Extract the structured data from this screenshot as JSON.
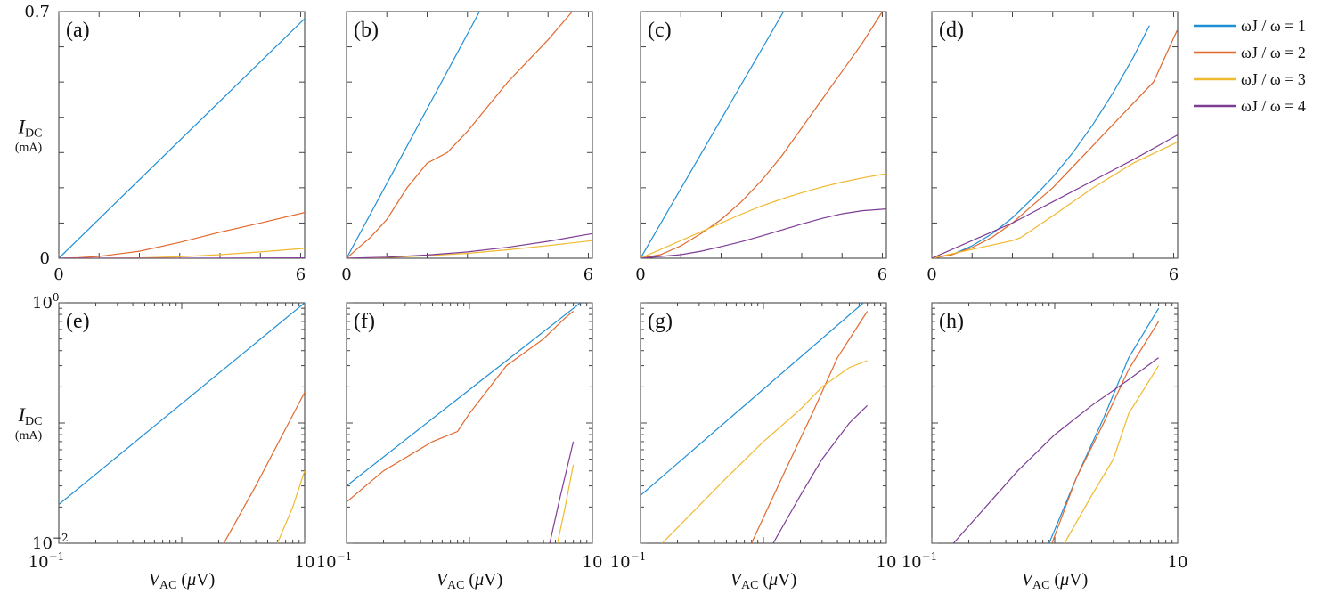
{
  "colors": {
    "c1": "#1f8fd6",
    "c2": "#e1692e",
    "c3": "#f0b92e",
    "c4": "#7d3d94"
  },
  "legend": [
    {
      "key": "c1",
      "label": "ωJ / ω = 1"
    },
    {
      "key": "c2",
      "label": "ωJ / ω = 2"
    },
    {
      "key": "c3",
      "label": "ωJ / ω = 3"
    },
    {
      "key": "c4",
      "label": "ωJ / ω = 4"
    }
  ],
  "axis_text": {
    "ylabel_main": "I",
    "ylabel_sub": "DC",
    "yunit": "(mA)",
    "xlabel_main": "V",
    "xlabel_sub": "AC",
    "xunit_open": " (",
    "xunit_mu": "μ",
    "xunit_close": "V)",
    "lin_x_ticks": [
      "0",
      "6"
    ],
    "lin_y_ticks": [
      "0.7",
      "0"
    ],
    "log_x_ticks": [
      "10",
      "−1",
      "10",
      ""
    ],
    "log_y_ticks": [
      "10",
      "0",
      "10",
      "−2"
    ]
  },
  "chart_data": [
    {
      "type": "line",
      "panel": "(a)",
      "xscale": "linear",
      "yscale": "linear",
      "xlim": [
        0,
        6.1
      ],
      "ylim": [
        0,
        0.7
      ],
      "xlabel": "",
      "ylabel": "IDC (mA)",
      "series": [
        {
          "name": "ωJ / ω = 1",
          "key": "c1",
          "x": [
            0,
            6.1
          ],
          "y": [
            0,
            0.68
          ]
        },
        {
          "name": "ωJ / ω = 2",
          "key": "c2",
          "x": [
            0,
            0.5,
            1,
            2,
            3,
            4,
            5,
            6.1
          ],
          "y": [
            0,
            0.0015,
            0.005,
            0.02,
            0.045,
            0.074,
            0.1,
            0.13
          ]
        },
        {
          "name": "ωJ / ω = 3",
          "key": "c3",
          "x": [
            0,
            1,
            2,
            3,
            4,
            5,
            6.1
          ],
          "y": [
            0,
            0,
            0.001,
            0.004,
            0.01,
            0.018,
            0.028
          ]
        },
        {
          "name": "ωJ / ω = 4",
          "key": "c4",
          "x": [
            0,
            3,
            6.1
          ],
          "y": [
            0,
            0,
            0.001
          ]
        }
      ]
    },
    {
      "type": "line",
      "panel": "(b)",
      "xscale": "linear",
      "yscale": "linear",
      "xlim": [
        0,
        6.1
      ],
      "ylim": [
        0,
        0.7
      ],
      "xlabel": "",
      "ylabel": "",
      "series": [
        {
          "name": "ωJ / ω = 1",
          "key": "c1",
          "x": [
            0,
            3.3
          ],
          "y": [
            0,
            0.7
          ]
        },
        {
          "name": "ωJ / ω = 2",
          "key": "c2",
          "x": [
            0,
            0.3,
            0.6,
            1,
            1.5,
            2,
            2.5,
            3,
            3.5,
            4,
            4.5,
            5,
            5.6
          ],
          "y": [
            0,
            0.03,
            0.06,
            0.11,
            0.2,
            0.27,
            0.3,
            0.36,
            0.43,
            0.5,
            0.56,
            0.62,
            0.7
          ]
        },
        {
          "name": "ωJ / ω = 3",
          "key": "c3",
          "x": [
            0,
            1,
            2,
            3,
            4,
            5,
            6.1
          ],
          "y": [
            0,
            0.002,
            0.007,
            0.014,
            0.024,
            0.036,
            0.05
          ]
        },
        {
          "name": "ωJ / ω = 4",
          "key": "c4",
          "x": [
            0,
            1,
            2,
            3,
            4,
            5,
            6.1
          ],
          "y": [
            0,
            0.003,
            0.009,
            0.018,
            0.031,
            0.048,
            0.07
          ]
        }
      ]
    },
    {
      "type": "line",
      "panel": "(c)",
      "xscale": "linear",
      "yscale": "linear",
      "xlim": [
        0,
        6.1
      ],
      "ylim": [
        0,
        0.7
      ],
      "xlabel": "",
      "ylabel": "",
      "series": [
        {
          "name": "ωJ / ω = 1",
          "key": "c1",
          "x": [
            0,
            3.55
          ],
          "y": [
            0,
            0.7
          ]
        },
        {
          "name": "ωJ / ω = 2",
          "key": "c2",
          "x": [
            0,
            0.5,
            1,
            1.5,
            2,
            2.5,
            3,
            3.5,
            4,
            4.5,
            5,
            5.5,
            6
          ],
          "y": [
            0,
            0.01,
            0.035,
            0.07,
            0.11,
            0.16,
            0.22,
            0.29,
            0.37,
            0.45,
            0.53,
            0.61,
            0.7
          ]
        },
        {
          "name": "ωJ / ω = 3",
          "key": "c3",
          "x": [
            0,
            0.5,
            1,
            1.5,
            2,
            2.5,
            3,
            3.5,
            4,
            4.5,
            5,
            5.5,
            6.1
          ],
          "y": [
            0,
            0.025,
            0.05,
            0.075,
            0.1,
            0.125,
            0.148,
            0.168,
            0.186,
            0.202,
            0.216,
            0.228,
            0.24
          ]
        },
        {
          "name": "ωJ / ω = 4",
          "key": "c4",
          "x": [
            0,
            1,
            1.5,
            2,
            2.5,
            3,
            3.5,
            4,
            4.5,
            5,
            5.5,
            6.1
          ],
          "y": [
            0,
            0.01,
            0.02,
            0.033,
            0.047,
            0.063,
            0.08,
            0.097,
            0.113,
            0.126,
            0.135,
            0.14
          ]
        }
      ]
    },
    {
      "type": "line",
      "panel": "(d)",
      "xscale": "linear",
      "yscale": "linear",
      "xlim": [
        0,
        6.1
      ],
      "ylim": [
        0,
        0.7
      ],
      "xlabel": "",
      "ylabel": "",
      "series": [
        {
          "name": "ωJ / ω = 1",
          "key": "c1",
          "x": [
            0,
            0.5,
            1,
            1.5,
            2,
            2.5,
            3,
            3.5,
            4,
            4.5,
            5,
            5.4
          ],
          "y": [
            0,
            0.01,
            0.035,
            0.07,
            0.115,
            0.17,
            0.23,
            0.3,
            0.38,
            0.47,
            0.57,
            0.66
          ]
        },
        {
          "name": "ωJ / ω = 2",
          "key": "c2",
          "x": [
            0,
            0.5,
            1,
            1.5,
            2,
            2.5,
            3,
            3.5,
            4,
            4.5,
            5,
            5.5,
            6.1
          ],
          "y": [
            0,
            0.01,
            0.03,
            0.06,
            0.1,
            0.15,
            0.2,
            0.26,
            0.32,
            0.38,
            0.44,
            0.5,
            0.65
          ]
        },
        {
          "name": "ωJ / ω = 3",
          "key": "c3",
          "x": [
            0,
            1,
            2,
            2.2,
            3,
            4,
            5,
            6.1
          ],
          "y": [
            0,
            0.025,
            0.05,
            0.058,
            0.12,
            0.2,
            0.27,
            0.33
          ]
        },
        {
          "name": "ωJ / ω = 4",
          "key": "c4",
          "x": [
            0,
            1,
            2,
            3,
            4,
            5,
            6.1
          ],
          "y": [
            0,
            0.05,
            0.1,
            0.16,
            0.22,
            0.28,
            0.35
          ]
        }
      ]
    },
    {
      "type": "line",
      "panel": "(e)",
      "xscale": "log",
      "yscale": "log",
      "xlim": [
        0.1,
        10
      ],
      "ylim": [
        0.01,
        1
      ],
      "xlabel": "VAC (μV)",
      "ylabel": "IDC (mA)",
      "series": [
        {
          "name": "ωJ / ω = 1",
          "key": "c1",
          "x": [
            0.1,
            10
          ],
          "y": [
            0.021,
            1
          ]
        },
        {
          "name": "ωJ / ω = 2",
          "key": "c2",
          "x": [
            2.2,
            4,
            10
          ],
          "y": [
            0.01,
            0.03,
            0.18
          ]
        },
        {
          "name": "ωJ / ω = 3",
          "key": "c3",
          "x": [
            6,
            8,
            10
          ],
          "y": [
            0.01,
            0.02,
            0.04
          ]
        }
      ]
    },
    {
      "type": "line",
      "panel": "(f)",
      "xscale": "log",
      "yscale": "log",
      "xlim": [
        0.1,
        10
      ],
      "ylim": [
        0.01,
        1
      ],
      "xlabel": "VAC (μV)",
      "ylabel": "",
      "series": [
        {
          "name": "ωJ / ω = 1",
          "key": "c1",
          "x": [
            0.1,
            8
          ],
          "y": [
            0.03,
            1
          ]
        },
        {
          "name": "ωJ / ω = 2",
          "key": "c2",
          "x": [
            0.1,
            0.2,
            0.5,
            0.8,
            1,
            2,
            4,
            6,
            7
          ],
          "y": [
            0.022,
            0.04,
            0.07,
            0.085,
            0.12,
            0.3,
            0.5,
            0.75,
            0.85
          ]
        },
        {
          "name": "ωJ / ω = 3",
          "key": "c3",
          "x": [
            5.2,
            6,
            7
          ],
          "y": [
            0.01,
            0.02,
            0.045
          ]
        },
        {
          "name": "ωJ / ω = 4",
          "key": "c4",
          "x": [
            4.5,
            5.5,
            7
          ],
          "y": [
            0.01,
            0.025,
            0.07
          ]
        }
      ]
    },
    {
      "type": "line",
      "panel": "(g)",
      "xscale": "log",
      "yscale": "log",
      "xlim": [
        0.1,
        10
      ],
      "ylim": [
        0.01,
        1
      ],
      "xlabel": "VAC (μV)",
      "ylabel": "",
      "series": [
        {
          "name": "ωJ / ω = 1",
          "key": "c1",
          "x": [
            0.1,
            6.5
          ],
          "y": [
            0.025,
            1
          ]
        },
        {
          "name": "ωJ / ω = 2",
          "key": "c2",
          "x": [
            0.8,
            1.5,
            2.5,
            4,
            7
          ],
          "y": [
            0.01,
            0.04,
            0.12,
            0.35,
            0.85
          ]
        },
        {
          "name": "ωJ / ω = 3",
          "key": "c3",
          "x": [
            0.15,
            0.5,
            1,
            2,
            3,
            5,
            7
          ],
          "y": [
            0.01,
            0.035,
            0.07,
            0.13,
            0.2,
            0.29,
            0.33
          ]
        },
        {
          "name": "ωJ / ω = 4",
          "key": "c4",
          "x": [
            1.2,
            2,
            3,
            5,
            7
          ],
          "y": [
            0.01,
            0.025,
            0.05,
            0.1,
            0.14
          ]
        }
      ]
    },
    {
      "type": "line",
      "panel": "(h)",
      "xscale": "log",
      "yscale": "log",
      "xlim": [
        0.1,
        10
      ],
      "ylim": [
        0.01,
        1
      ],
      "xlabel": "VAC (μV)",
      "ylabel": "",
      "series": [
        {
          "name": "ωJ / ω = 1",
          "key": "c1",
          "x": [
            0.9,
            1.5,
            2.5,
            4,
            7
          ],
          "y": [
            0.01,
            0.035,
            0.11,
            0.35,
            0.9
          ]
        },
        {
          "name": "ωJ / ω = 2",
          "key": "c2",
          "x": [
            0.95,
            1.5,
            2.5,
            4,
            7
          ],
          "y": [
            0.01,
            0.035,
            0.1,
            0.28,
            0.7
          ]
        },
        {
          "name": "ωJ / ω = 3",
          "key": "c3",
          "x": [
            1.2,
            2,
            3,
            4,
            7
          ],
          "y": [
            0.01,
            0.025,
            0.05,
            0.12,
            0.3
          ]
        },
        {
          "name": "ωJ / ω = 4",
          "key": "c4",
          "x": [
            0.15,
            0.5,
            1,
            2,
            4,
            7
          ],
          "y": [
            0.01,
            0.04,
            0.08,
            0.14,
            0.23,
            0.35
          ]
        }
      ]
    }
  ]
}
